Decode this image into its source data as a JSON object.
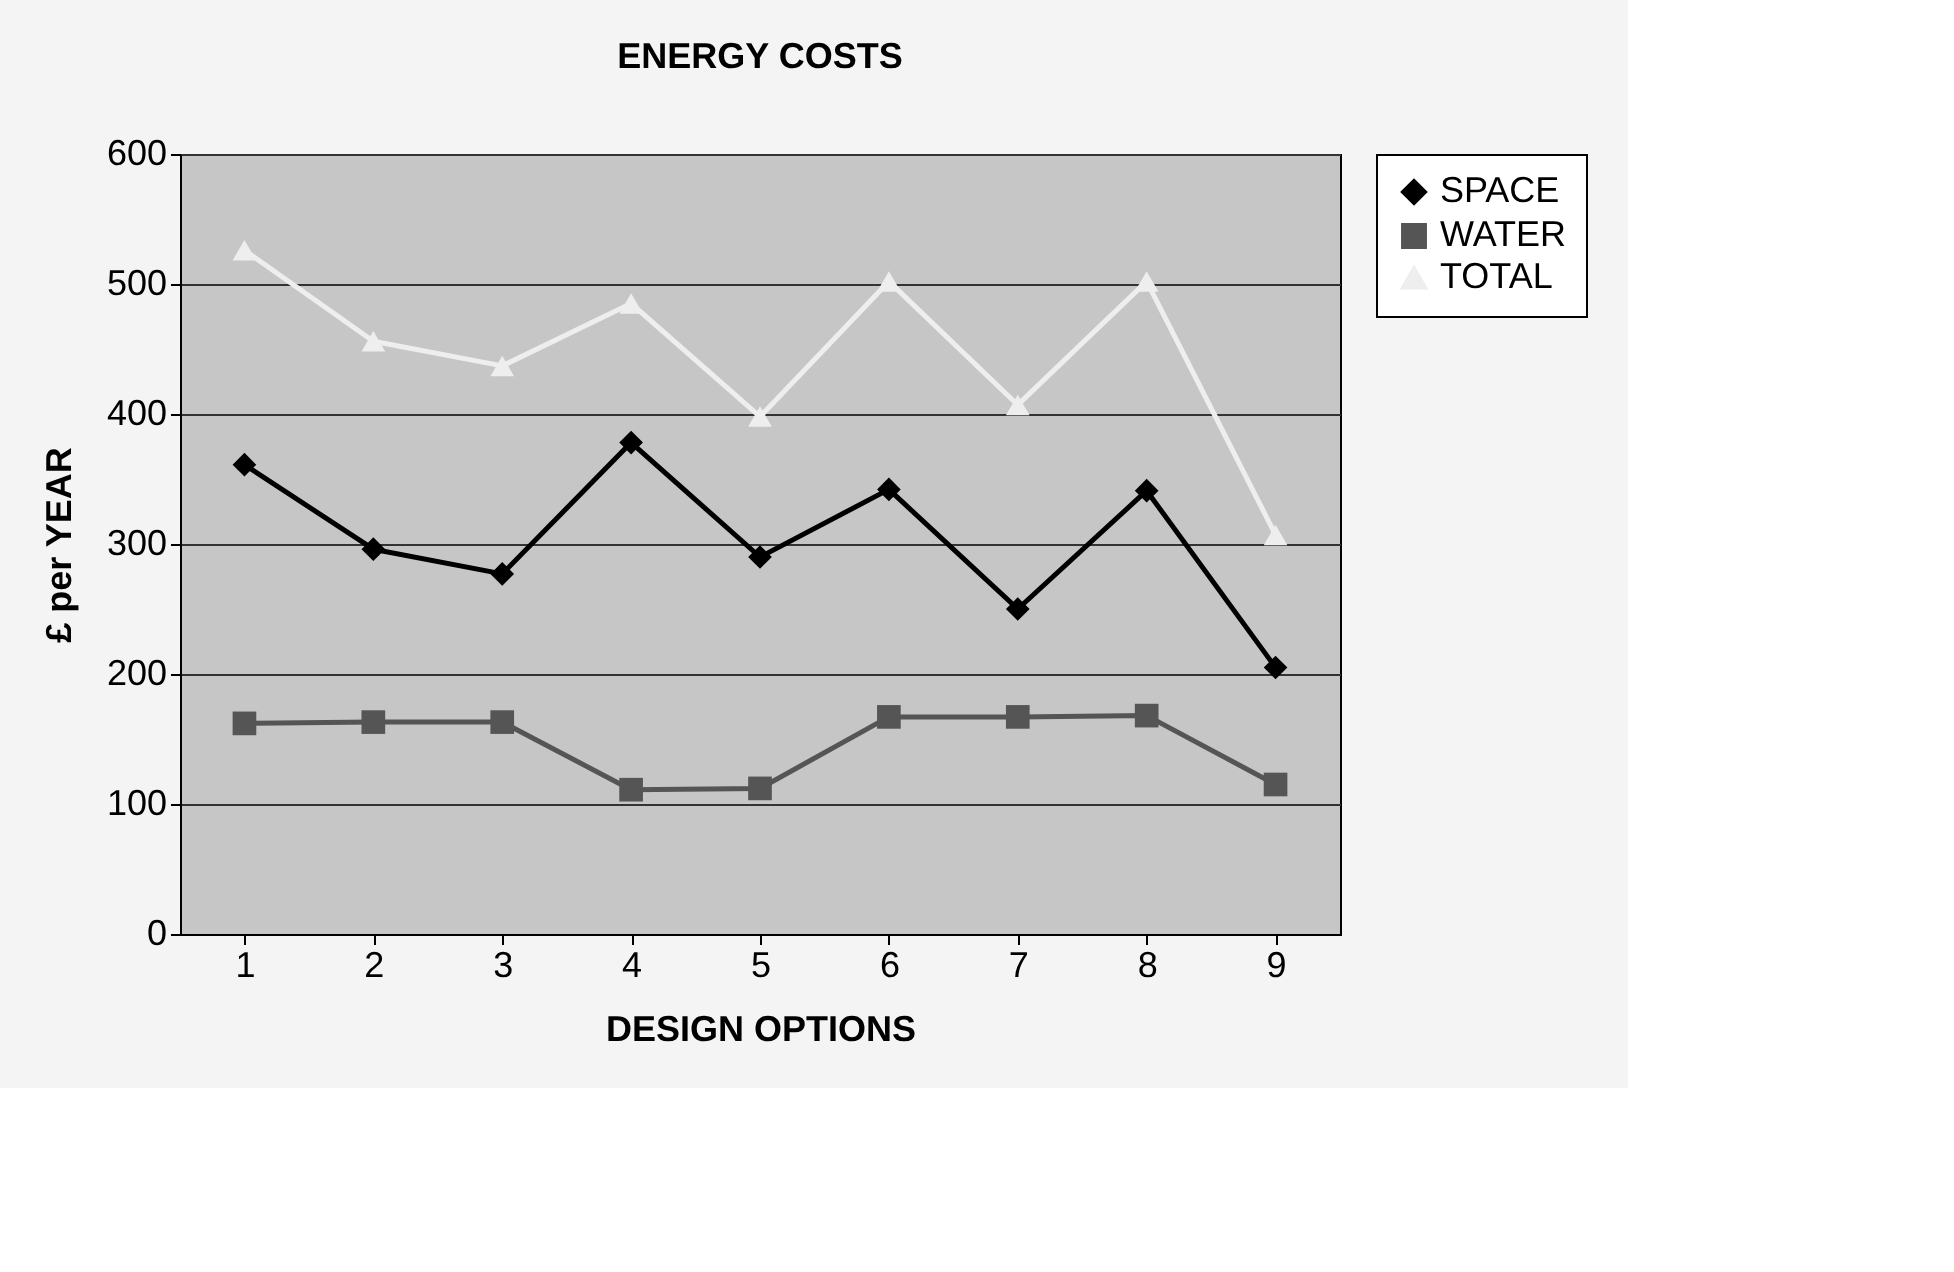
{
  "chart_data": {
    "type": "line",
    "title": "ENERGY COSTS",
    "xlabel": "DESIGN OPTIONS",
    "ylabel": "£ per YEAR",
    "categories": [
      "1",
      "2",
      "3",
      "4",
      "5",
      "6",
      "7",
      "8",
      "9"
    ],
    "series": [
      {
        "name": "SPACE",
        "color": "#000000",
        "marker": "diamond",
        "values": [
          361,
          296,
          277,
          378,
          290,
          342,
          250,
          341,
          205
        ]
      },
      {
        "name": "WATER",
        "color": "#555555",
        "marker": "square",
        "values": [
          162,
          163,
          163,
          111,
          112,
          167,
          167,
          168,
          115
        ]
      },
      {
        "name": "TOTAL",
        "color": "#eeeeee",
        "marker": "triangle",
        "values": [
          526,
          456,
          437,
          485,
          398,
          502,
          407,
          502,
          307
        ]
      }
    ],
    "ylim": [
      0,
      600
    ],
    "yticks": [
      0,
      100,
      200,
      300,
      400,
      500,
      600
    ],
    "grid": "y",
    "legend": "right",
    "line_style": "solid"
  }
}
